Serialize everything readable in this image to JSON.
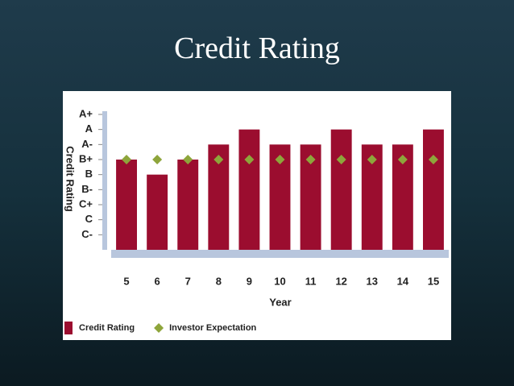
{
  "title": "Credit Rating",
  "chart_data": {
    "type": "bar",
    "categories": [
      "5",
      "6",
      "7",
      "8",
      "9",
      "10",
      "11",
      "12",
      "13",
      "14",
      "15"
    ],
    "series": [
      {
        "name": "Credit Rating",
        "type": "bar",
        "color": "#9b0d2f",
        "values": [
          6,
          5,
          6,
          7,
          8,
          7,
          7,
          8,
          7,
          7,
          8
        ]
      },
      {
        "name": "Investor Expectation",
        "type": "scatter",
        "color": "#8ea53b",
        "values": [
          6,
          6,
          6,
          6,
          6,
          6,
          6,
          6,
          6,
          6,
          6
        ]
      }
    ],
    "ylim": [
      0,
      9
    ],
    "yticks": [
      {
        "value": 9,
        "label": "A+"
      },
      {
        "value": 8,
        "label": "A"
      },
      {
        "value": 7,
        "label": "A-"
      },
      {
        "value": 6,
        "label": "B+"
      },
      {
        "value": 5,
        "label": "B"
      },
      {
        "value": 4,
        "label": "B-"
      },
      {
        "value": 3,
        "label": "C+"
      },
      {
        "value": 2,
        "label": "C"
      },
      {
        "value": 1,
        "label": "C-"
      }
    ],
    "xlabel": "Year",
    "ylabel": "Credit Rating",
    "legend": "bottom-left"
  }
}
